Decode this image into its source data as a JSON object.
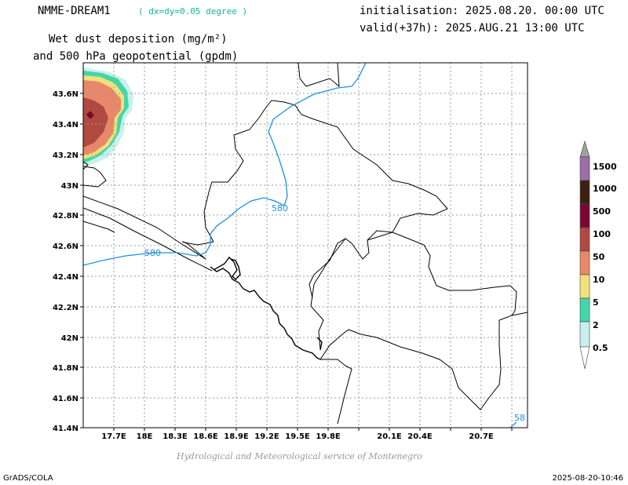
{
  "header": {
    "model": "NMME-DREAM1",
    "resolution": "( dx=dy=0.05 degree )",
    "initialisation": "initialisation: 2025.08.20. 00:00 UTC",
    "valid": "valid(+37h): 2025.AUG.21 13:00 UTC",
    "variable_line1": "Wet dust deposition (mg/m²)",
    "variable_line2": "and 500 hPa geopotential (gpdm)"
  },
  "map": {
    "lon_labels": [
      "17.7E",
      "18E",
      "18.3E",
      "18.6E",
      "18.9E",
      "19.2E",
      "19.5E",
      "19.8E",
      "20.1E",
      "20.4E",
      "20.7E"
    ],
    "lat_labels": [
      "43.6N",
      "43.4N",
      "43.2N",
      "43N",
      "42.8N",
      "42.6N",
      "42.4N",
      "42.2N",
      "42N",
      "41.8N",
      "41.6N",
      "41.4N"
    ],
    "contour_labels": [
      "580",
      "580",
      "58"
    ],
    "contour_color": "#1e90e0"
  },
  "colorbar": {
    "labels": [
      "1500",
      "1000",
      "500",
      "100",
      "50",
      "10",
      "5",
      "2",
      "0.5"
    ],
    "colors": [
      "#a0a0a0",
      "#9b6fa8",
      "#3d2010",
      "#7a0830",
      "#b04a40",
      "#e8886a",
      "#f2e07a",
      "#44d6a8",
      "#c8f0ec",
      "#ffffff"
    ]
  },
  "footer": {
    "credit": "Hydrological and Meteorological service of Montenegro",
    "software": "GrADS/COLA",
    "timestamp": "2025-08-20-10:46"
  }
}
